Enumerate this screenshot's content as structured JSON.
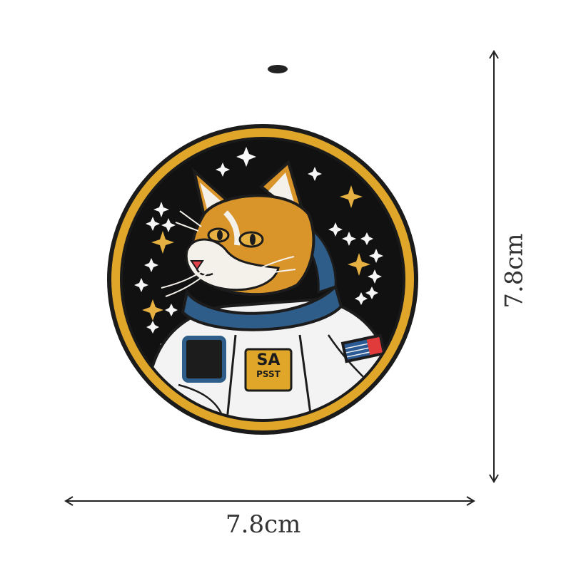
{
  "measurements": {
    "width_label": "7.8cm",
    "height_label": "7.8cm"
  },
  "patch": {
    "badge_text": "SA",
    "badge_subtext": "PSST"
  },
  "colors": {
    "background": "#ffffff",
    "patch_border": "#e0a62a",
    "patch_field": "#111111",
    "fur_orange": "#d9952a",
    "fur_white": "#f4f1ea",
    "suit_white": "#f3f3f3",
    "collar_blue": "#2f5d8a",
    "star_white": "#f7f7f7",
    "star_gold": "#e6b042",
    "nose_red": "#e0434b",
    "flag_blue": "#2b5a94",
    "flag_red": "#e23b3b",
    "arrow": "#222222"
  }
}
